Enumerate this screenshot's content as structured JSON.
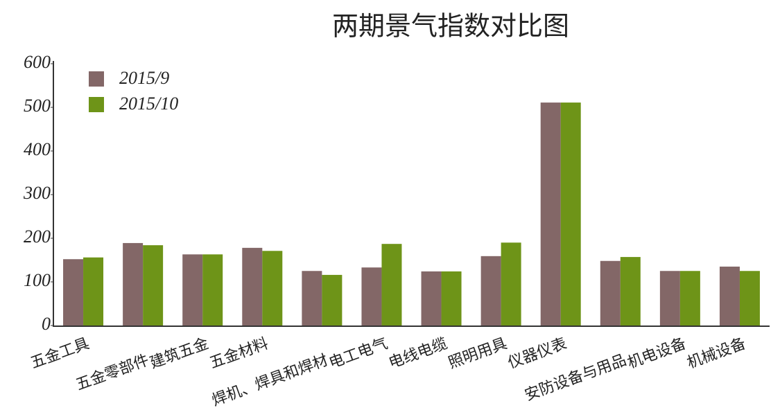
{
  "chart_data": {
    "type": "bar",
    "title": "两期景气指数对比图",
    "categories": [
      "五金工具",
      "五金零部件",
      "建筑五金",
      "五金材料",
      "焊机、焊具和焊材",
      "电工电气",
      "电线电缆",
      "照明用具",
      "仪器仪表",
      "安防设备与用品",
      "机电设备",
      "机械设备"
    ],
    "series": [
      {
        "name": "2015/9",
        "color": "#836767",
        "values": [
          152,
          189,
          163,
          178,
          125,
          133,
          124,
          159,
          511,
          148,
          125,
          135
        ]
      },
      {
        "name": "2015/10",
        "color": "#6e9418",
        "values": [
          156,
          184,
          163,
          171,
          116,
          187,
          124,
          190,
          511,
          157,
          125,
          125
        ]
      }
    ],
    "ylim": [
      0,
      600
    ],
    "yticks": [
      0,
      100,
      200,
      300,
      400,
      500,
      600
    ],
    "grid": false,
    "legend": "top-left"
  }
}
